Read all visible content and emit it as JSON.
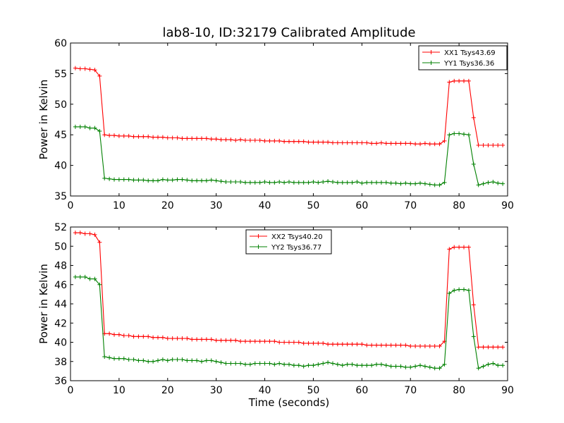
{
  "figure": {
    "title": "lab8-10, ID:32179 Calibrated Amplitude",
    "xlabel": "Time (seconds)"
  },
  "colors": {
    "red": "#ff0000",
    "green": "#008000",
    "axes": "#000000",
    "background": "#ffffff"
  },
  "chart_data": [
    {
      "type": "line",
      "title": "lab8-10, ID:32179 Calibrated Amplitude",
      "xlabel": "",
      "ylabel": "Power in Kelvin",
      "xlim": [
        0,
        90
      ],
      "ylim": [
        35,
        60
      ],
      "xticks": [
        0,
        10,
        20,
        30,
        40,
        50,
        60,
        70,
        80,
        90
      ],
      "yticks": [
        35,
        40,
        45,
        50,
        55,
        60
      ],
      "grid": false,
      "legend": "top-right",
      "x": [
        1,
        2,
        3,
        4,
        5,
        6,
        7,
        8,
        9,
        10,
        11,
        12,
        13,
        14,
        15,
        16,
        17,
        18,
        19,
        20,
        21,
        22,
        23,
        24,
        25,
        26,
        27,
        28,
        29,
        30,
        31,
        32,
        33,
        34,
        35,
        36,
        37,
        38,
        39,
        40,
        41,
        42,
        43,
        44,
        45,
        46,
        47,
        48,
        49,
        50,
        51,
        52,
        53,
        54,
        55,
        56,
        57,
        58,
        59,
        60,
        61,
        62,
        63,
        64,
        65,
        66,
        67,
        68,
        69,
        70,
        71,
        72,
        73,
        74,
        75,
        76,
        77,
        78,
        79,
        80,
        81,
        82,
        83,
        84,
        85,
        86,
        87,
        88,
        89
      ],
      "series": [
        {
          "name": "XX1 Tsys43.69",
          "color": "#ff0000",
          "values": [
            55.9,
            55.8,
            55.8,
            55.7,
            55.6,
            54.6,
            45.0,
            44.9,
            44.9,
            44.8,
            44.8,
            44.8,
            44.7,
            44.7,
            44.7,
            44.7,
            44.6,
            44.6,
            44.6,
            44.5,
            44.5,
            44.5,
            44.4,
            44.4,
            44.4,
            44.4,
            44.4,
            44.4,
            44.3,
            44.3,
            44.2,
            44.2,
            44.2,
            44.1,
            44.2,
            44.1,
            44.1,
            44.1,
            44.1,
            44.0,
            44.0,
            44.0,
            44.0,
            43.9,
            43.9,
            43.9,
            43.9,
            43.9,
            43.8,
            43.8,
            43.8,
            43.8,
            43.8,
            43.7,
            43.7,
            43.7,
            43.7,
            43.7,
            43.7,
            43.7,
            43.7,
            43.6,
            43.6,
            43.7,
            43.6,
            43.6,
            43.6,
            43.6,
            43.6,
            43.6,
            43.5,
            43.5,
            43.6,
            43.5,
            43.5,
            43.5,
            44.0,
            53.6,
            53.8,
            53.8,
            53.8,
            53.8,
            47.8,
            43.3,
            43.3,
            43.3,
            43.3,
            43.3,
            43.3
          ]
        },
        {
          "name": "YY1 Tsys36.36",
          "color": "#008000",
          "values": [
            46.3,
            46.3,
            46.3,
            46.1,
            46.1,
            45.6,
            37.9,
            37.8,
            37.7,
            37.7,
            37.7,
            37.7,
            37.6,
            37.6,
            37.6,
            37.5,
            37.5,
            37.5,
            37.7,
            37.6,
            37.6,
            37.7,
            37.7,
            37.6,
            37.5,
            37.5,
            37.5,
            37.5,
            37.6,
            37.5,
            37.4,
            37.3,
            37.3,
            37.3,
            37.3,
            37.2,
            37.2,
            37.2,
            37.2,
            37.3,
            37.2,
            37.2,
            37.3,
            37.2,
            37.3,
            37.2,
            37.2,
            37.2,
            37.2,
            37.3,
            37.2,
            37.3,
            37.4,
            37.3,
            37.2,
            37.2,
            37.2,
            37.2,
            37.3,
            37.1,
            37.2,
            37.2,
            37.2,
            37.2,
            37.2,
            37.1,
            37.1,
            37.0,
            37.1,
            37.0,
            37.0,
            37.1,
            37.0,
            36.9,
            36.8,
            36.8,
            37.2,
            45.0,
            45.2,
            45.2,
            45.1,
            45.0,
            40.2,
            36.8,
            37.0,
            37.2,
            37.3,
            37.1,
            37.0
          ]
        }
      ]
    },
    {
      "type": "line",
      "title": "",
      "xlabel": "Time (seconds)",
      "ylabel": "Power in Kelvin",
      "xlim": [
        0,
        90
      ],
      "ylim": [
        36,
        52
      ],
      "xticks": [
        0,
        10,
        20,
        30,
        40,
        50,
        60,
        70,
        80,
        90
      ],
      "yticks": [
        36,
        38,
        40,
        42,
        44,
        46,
        48,
        50,
        52
      ],
      "grid": false,
      "legend": "top-center",
      "x": [
        1,
        2,
        3,
        4,
        5,
        6,
        7,
        8,
        9,
        10,
        11,
        12,
        13,
        14,
        15,
        16,
        17,
        18,
        19,
        20,
        21,
        22,
        23,
        24,
        25,
        26,
        27,
        28,
        29,
        30,
        31,
        32,
        33,
        34,
        35,
        36,
        37,
        38,
        39,
        40,
        41,
        42,
        43,
        44,
        45,
        46,
        47,
        48,
        49,
        50,
        51,
        52,
        53,
        54,
        55,
        56,
        57,
        58,
        59,
        60,
        61,
        62,
        63,
        64,
        65,
        66,
        67,
        68,
        69,
        70,
        71,
        72,
        73,
        74,
        75,
        76,
        77,
        78,
        79,
        80,
        81,
        82,
        83,
        84,
        85,
        86,
        87,
        88,
        89
      ],
      "series": [
        {
          "name": "XX2 Tsys40.20",
          "color": "#ff0000",
          "values": [
            51.4,
            51.4,
            51.3,
            51.3,
            51.2,
            50.4,
            40.9,
            40.9,
            40.8,
            40.8,
            40.7,
            40.7,
            40.6,
            40.6,
            40.6,
            40.6,
            40.5,
            40.5,
            40.5,
            40.4,
            40.4,
            40.4,
            40.4,
            40.4,
            40.3,
            40.3,
            40.3,
            40.3,
            40.3,
            40.2,
            40.2,
            40.2,
            40.2,
            40.2,
            40.1,
            40.1,
            40.1,
            40.1,
            40.1,
            40.1,
            40.1,
            40.1,
            40.0,
            40.0,
            40.0,
            40.0,
            40.0,
            39.9,
            39.9,
            39.9,
            39.9,
            39.9,
            39.8,
            39.8,
            39.8,
            39.8,
            39.8,
            39.8,
            39.8,
            39.8,
            39.7,
            39.7,
            39.7,
            39.7,
            39.7,
            39.7,
            39.7,
            39.7,
            39.7,
            39.6,
            39.6,
            39.6,
            39.6,
            39.6,
            39.6,
            39.6,
            40.1,
            49.7,
            49.9,
            49.9,
            49.9,
            49.9,
            43.9,
            39.5,
            39.5,
            39.5,
            39.5,
            39.5,
            39.5
          ]
        },
        {
          "name": "YY2 Tsys36.77",
          "color": "#008000",
          "values": [
            46.8,
            46.8,
            46.8,
            46.6,
            46.6,
            46.0,
            38.5,
            38.4,
            38.3,
            38.3,
            38.3,
            38.2,
            38.2,
            38.1,
            38.1,
            38.0,
            38.0,
            38.1,
            38.2,
            38.1,
            38.2,
            38.2,
            38.2,
            38.1,
            38.1,
            38.1,
            38.0,
            38.1,
            38.1,
            38.0,
            37.9,
            37.8,
            37.8,
            37.8,
            37.8,
            37.7,
            37.7,
            37.8,
            37.8,
            37.8,
            37.8,
            37.7,
            37.8,
            37.7,
            37.7,
            37.6,
            37.6,
            37.5,
            37.6,
            37.6,
            37.7,
            37.8,
            37.9,
            37.8,
            37.7,
            37.6,
            37.7,
            37.7,
            37.6,
            37.6,
            37.6,
            37.6,
            37.7,
            37.7,
            37.6,
            37.5,
            37.5,
            37.5,
            37.4,
            37.4,
            37.5,
            37.6,
            37.5,
            37.4,
            37.3,
            37.3,
            37.7,
            45.1,
            45.4,
            45.5,
            45.5,
            45.4,
            40.6,
            37.3,
            37.5,
            37.7,
            37.8,
            37.6,
            37.6
          ]
        }
      ]
    }
  ]
}
